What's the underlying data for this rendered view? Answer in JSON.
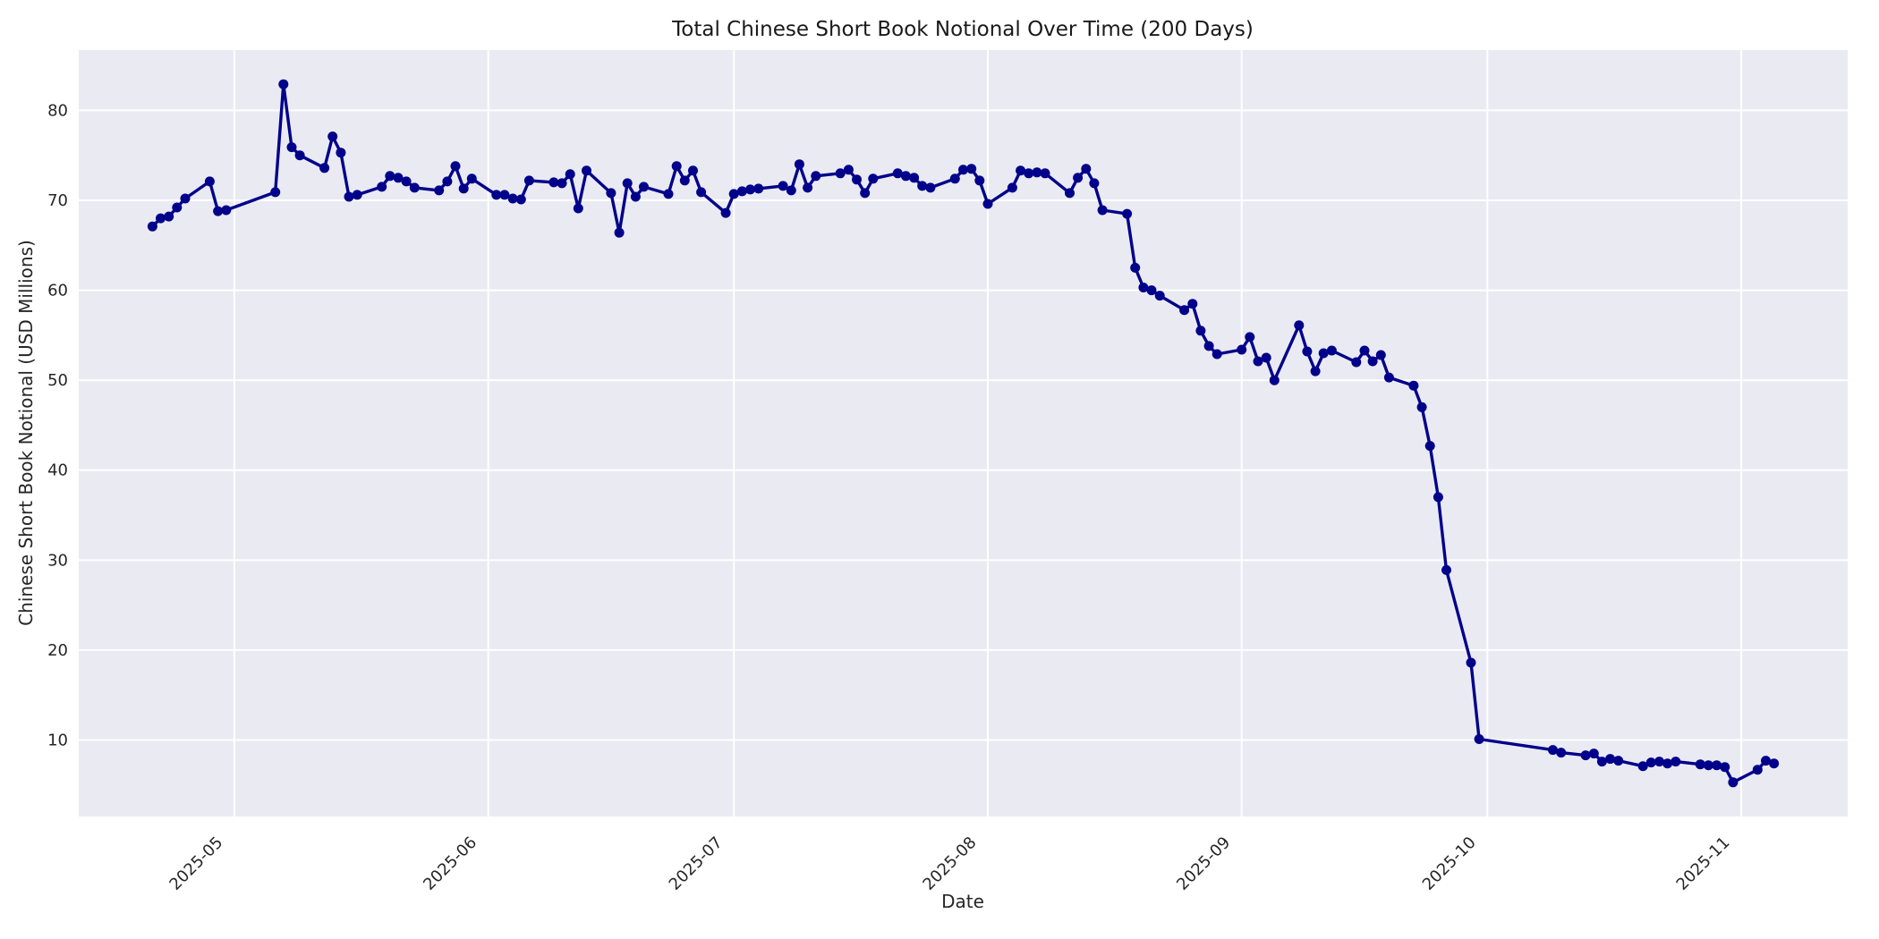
{
  "chart_data": {
    "type": "line",
    "title": "Total Chinese Short Book Notional Over Time (200 Days)",
    "xlabel": "Date",
    "ylabel": "Chinese Short Book Notional (USD Millions)",
    "legend": "none",
    "grid": true,
    "plot_background_color": "#EAEAF2",
    "grid_color": "#FFFFFF",
    "line_color": "#00008B",
    "text_color": "#262626",
    "marker": "circle",
    "ylim": [
      1.5,
      86.7
    ],
    "xlim": [
      "2025-04-12",
      "2025-11-14"
    ],
    "y_ticks": [
      10,
      20,
      30,
      40,
      50,
      60,
      70,
      80
    ],
    "x_ticks": [
      {
        "label": "2025-05",
        "date": "2025-05-01"
      },
      {
        "label": "2025-06",
        "date": "2025-06-01"
      },
      {
        "label": "2025-07",
        "date": "2025-07-01"
      },
      {
        "label": "2025-08",
        "date": "2025-08-01"
      },
      {
        "label": "2025-09",
        "date": "2025-09-01"
      },
      {
        "label": "2025-10",
        "date": "2025-10-01"
      },
      {
        "label": "2025-11",
        "date": "2025-11-01"
      }
    ],
    "series": [
      {
        "dates": [
          "2025-04-21",
          "2025-04-22",
          "2025-04-23",
          "2025-04-24",
          "2025-04-25",
          "2025-04-28",
          "2025-04-29",
          "2025-04-30",
          "2025-05-06",
          "2025-05-07",
          "2025-05-08",
          "2025-05-09",
          "2025-05-12",
          "2025-05-13",
          "2025-05-14",
          "2025-05-15",
          "2025-05-16",
          "2025-05-19",
          "2025-05-20",
          "2025-05-21",
          "2025-05-22",
          "2025-05-23",
          "2025-05-26",
          "2025-05-27",
          "2025-05-28",
          "2025-05-29",
          "2025-05-30",
          "2025-06-02",
          "2025-06-03",
          "2025-06-04",
          "2025-06-05",
          "2025-06-06",
          "2025-06-09",
          "2025-06-10",
          "2025-06-11",
          "2025-06-12",
          "2025-06-13",
          "2025-06-16",
          "2025-06-17",
          "2025-06-18",
          "2025-06-19",
          "2025-06-20",
          "2025-06-23",
          "2025-06-24",
          "2025-06-25",
          "2025-06-26",
          "2025-06-27",
          "2025-06-30",
          "2025-07-01",
          "2025-07-02",
          "2025-07-03",
          "2025-07-04",
          "2025-07-07",
          "2025-07-08",
          "2025-07-09",
          "2025-07-10",
          "2025-07-11",
          "2025-07-14",
          "2025-07-15",
          "2025-07-16",
          "2025-07-17",
          "2025-07-18",
          "2025-07-21",
          "2025-07-22",
          "2025-07-23",
          "2025-07-24",
          "2025-07-25",
          "2025-07-28",
          "2025-07-29",
          "2025-07-30",
          "2025-07-31",
          "2025-08-01",
          "2025-08-04",
          "2025-08-05",
          "2025-08-06",
          "2025-08-07",
          "2025-08-08",
          "2025-08-11",
          "2025-08-12",
          "2025-08-13",
          "2025-08-14",
          "2025-08-15",
          "2025-08-18",
          "2025-08-19",
          "2025-08-20",
          "2025-08-21",
          "2025-08-22",
          "2025-08-25",
          "2025-08-26",
          "2025-08-27",
          "2025-08-28",
          "2025-08-29",
          "2025-09-01",
          "2025-09-02",
          "2025-09-03",
          "2025-09-04",
          "2025-09-05",
          "2025-09-08",
          "2025-09-09",
          "2025-09-10",
          "2025-09-11",
          "2025-09-12",
          "2025-09-15",
          "2025-09-16",
          "2025-09-17",
          "2025-09-18",
          "2025-09-19",
          "2025-09-22",
          "2025-09-23",
          "2025-09-24",
          "2025-09-25",
          "2025-09-26",
          "2025-09-29",
          "2025-09-30",
          "2025-10-09",
          "2025-10-10",
          "2025-10-13",
          "2025-10-14",
          "2025-10-15",
          "2025-10-16",
          "2025-10-17",
          "2025-10-20",
          "2025-10-21",
          "2025-10-22",
          "2025-10-23",
          "2025-10-24",
          "2025-10-27",
          "2025-10-28",
          "2025-10-29",
          "2025-10-30",
          "2025-10-31",
          "2025-11-03",
          "2025-11-04",
          "2025-11-05"
        ],
        "values": [
          67.1,
          68.0,
          68.2,
          69.2,
          70.2,
          72.1,
          68.8,
          68.9,
          70.9,
          82.9,
          75.9,
          75.0,
          73.6,
          77.1,
          75.3,
          70.4,
          70.6,
          71.5,
          72.7,
          72.5,
          72.1,
          71.4,
          71.1,
          72.1,
          73.8,
          71.3,
          72.4,
          70.6,
          70.6,
          70.2,
          70.1,
          72.2,
          72.0,
          71.9,
          72.9,
          69.1,
          73.3,
          70.8,
          66.4,
          71.9,
          70.4,
          71.5,
          70.7,
          73.8,
          72.2,
          73.3,
          70.9,
          68.6,
          70.7,
          71.0,
          71.2,
          71.3,
          71.6,
          71.1,
          74.0,
          71.4,
          72.7,
          73.0,
          73.4,
          72.3,
          70.8,
          72.4,
          73.0,
          72.7,
          72.5,
          71.6,
          71.4,
          72.4,
          73.4,
          73.5,
          72.2,
          69.6,
          71.4,
          73.3,
          73.0,
          73.1,
          73.0,
          70.8,
          72.5,
          73.5,
          71.9,
          68.9,
          68.5,
          62.5,
          60.3,
          60.0,
          59.4,
          57.8,
          58.5,
          55.5,
          53.8,
          52.9,
          53.4,
          54.8,
          52.1,
          52.5,
          50.0,
          56.1,
          53.2,
          51.0,
          53.0,
          53.3,
          52.0,
          53.3,
          52.1,
          52.8,
          50.3,
          49.4,
          47.0,
          42.7,
          37.0,
          28.9,
          18.6,
          10.1,
          8.9,
          8.6,
          8.3,
          8.5,
          7.6,
          7.9,
          7.7,
          7.1,
          7.5,
          7.6,
          7.4,
          7.6,
          7.3,
          7.2,
          7.2,
          7.0,
          5.3,
          6.7,
          7.7,
          7.4
        ]
      }
    ]
  }
}
